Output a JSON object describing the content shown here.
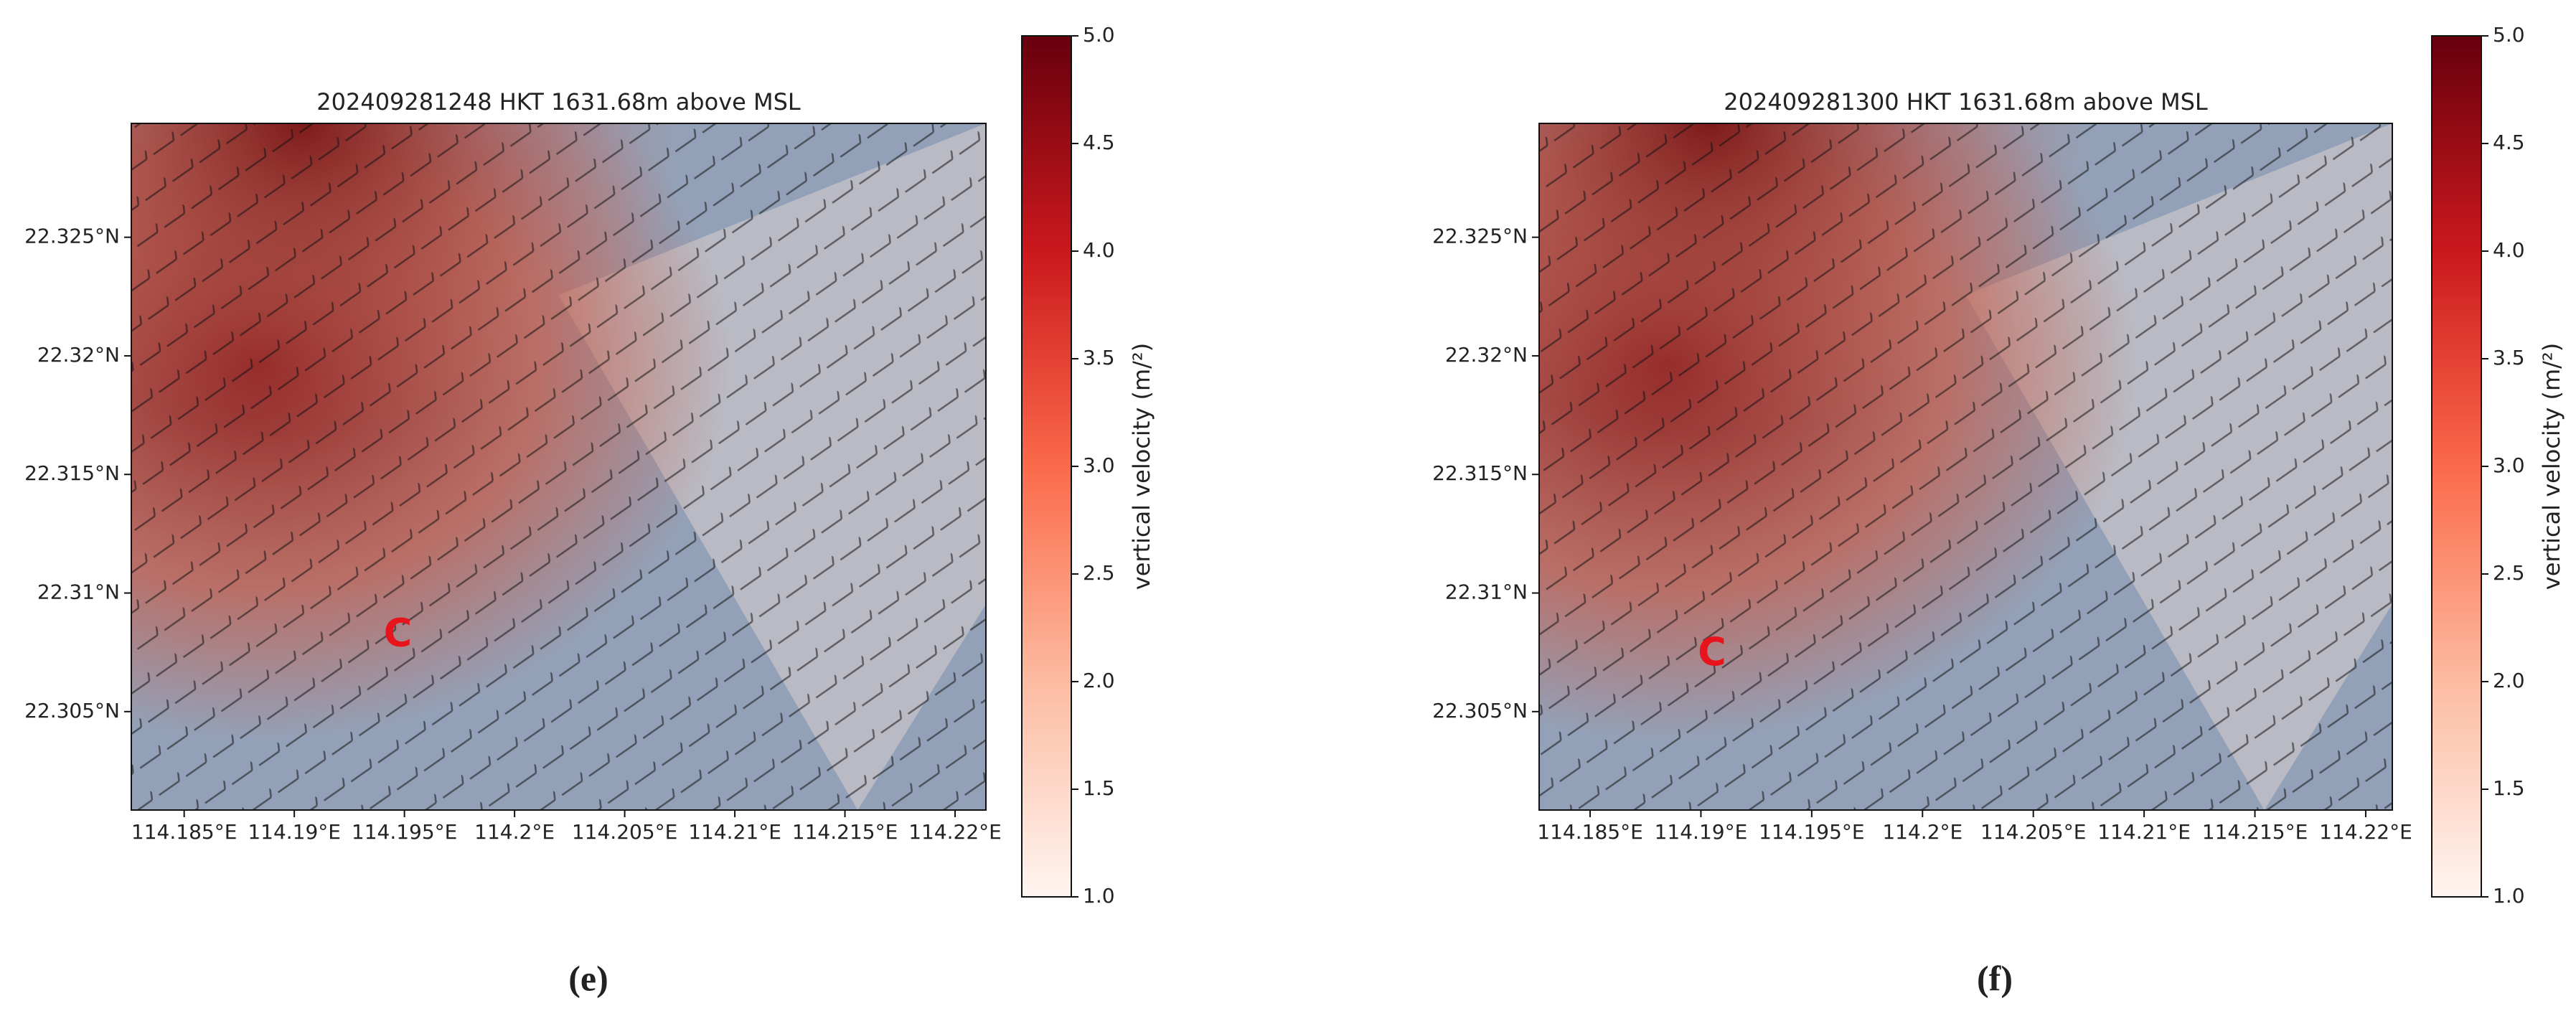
{
  "chart_data": [
    {
      "type": "map",
      "title": "202409281248 HKT 1631.68m above MSL",
      "xlim": [
        114.1826,
        114.2214
      ],
      "ylim": [
        22.30085,
        22.3298
      ],
      "xticks": [
        {
          "value": 114.185,
          "label": "114.185°E"
        },
        {
          "value": 114.19,
          "label": "114.19°E"
        },
        {
          "value": 114.195,
          "label": "114.195°E"
        },
        {
          "value": 114.2,
          "label": "114.2°E"
        },
        {
          "value": 114.205,
          "label": "114.205°E"
        },
        {
          "value": 114.21,
          "label": "114.21°E"
        },
        {
          "value": 114.215,
          "label": "114.215°E"
        },
        {
          "value": 114.22,
          "label": "114.22°E"
        }
      ],
      "yticks": [
        {
          "value": 22.305,
          "label": "22.305°N"
        },
        {
          "value": 22.31,
          "label": "22.31°N"
        },
        {
          "value": 22.315,
          "label": "22.315°N"
        },
        {
          "value": 22.32,
          "label": "22.32°N"
        },
        {
          "value": 22.325,
          "label": "22.325°N"
        }
      ],
      "annotations": [
        {
          "text": "C",
          "x": 114.1947,
          "y": 22.3082,
          "color": "#e8141c"
        }
      ],
      "colorbar": {
        "label": "vertical velocity (m/²)",
        "lim": [
          1.0,
          5.0
        ],
        "colors": [
          "#fff5f0",
          "#fcbba1",
          "#fb6a4a",
          "#cb181d",
          "#67000d"
        ],
        "ticks": [
          {
            "value": 1.0,
            "label": "1.0"
          },
          {
            "value": 1.5,
            "label": "1.5"
          },
          {
            "value": 2.0,
            "label": "2.0"
          },
          {
            "value": 2.5,
            "label": "2.5"
          },
          {
            "value": 3.0,
            "label": "3.0"
          },
          {
            "value": 3.5,
            "label": "3.5"
          },
          {
            "value": 4.0,
            "label": "4.0"
          },
          {
            "value": 4.5,
            "label": "4.5"
          },
          {
            "value": 5.0,
            "label": "5.0"
          }
        ]
      },
      "panel_label": "(e)"
    },
    {
      "type": "map",
      "title": "202409281300 HKT 1631.68m above MSL",
      "xlim": [
        114.1827,
        114.2212
      ],
      "ylim": [
        22.30085,
        22.3298
      ],
      "xticks": [
        {
          "value": 114.185,
          "label": "114.185°E"
        },
        {
          "value": 114.19,
          "label": "114.19°E"
        },
        {
          "value": 114.195,
          "label": "114.195°E"
        },
        {
          "value": 114.2,
          "label": "114.2°E"
        },
        {
          "value": 114.205,
          "label": "114.205°E"
        },
        {
          "value": 114.21,
          "label": "114.21°E"
        },
        {
          "value": 114.215,
          "label": "114.215°E"
        },
        {
          "value": 114.22,
          "label": "114.22°E"
        }
      ],
      "yticks": [
        {
          "value": 22.305,
          "label": "22.305°N"
        },
        {
          "value": 22.31,
          "label": "22.31°N"
        },
        {
          "value": 22.315,
          "label": "22.315°N"
        },
        {
          "value": 22.32,
          "label": "22.32°N"
        },
        {
          "value": 22.325,
          "label": "22.325°N"
        }
      ],
      "annotations": [
        {
          "text": "C",
          "x": 114.1905,
          "y": 22.3074,
          "color": "#e8141c"
        }
      ],
      "colorbar": {
        "label": "vertical velocity (m/²)",
        "lim": [
          1.0,
          5.0
        ],
        "colors": [
          "#fff5f0",
          "#fcbba1",
          "#fb6a4a",
          "#cb181d",
          "#67000d"
        ],
        "ticks": [
          {
            "value": 1.0,
            "label": "1.0"
          },
          {
            "value": 1.5,
            "label": "1.5"
          },
          {
            "value": 2.0,
            "label": "2.0"
          },
          {
            "value": 2.5,
            "label": "2.5"
          },
          {
            "value": 3.0,
            "label": "3.0"
          },
          {
            "value": 3.5,
            "label": "3.5"
          },
          {
            "value": 4.0,
            "label": "4.0"
          },
          {
            "value": 4.5,
            "label": "4.5"
          },
          {
            "value": 5.0,
            "label": "5.0"
          }
        ]
      },
      "panel_label": "(f)"
    }
  ]
}
